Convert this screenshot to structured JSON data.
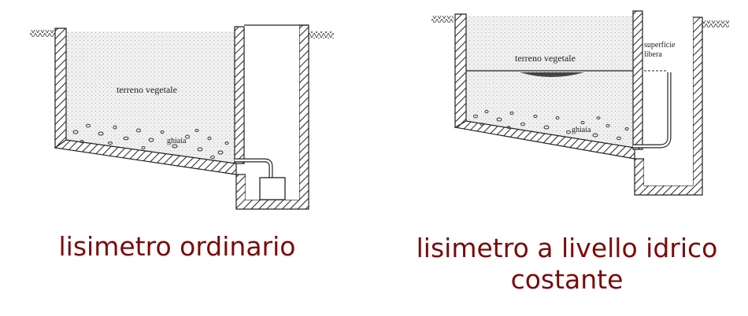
{
  "left_diagram": {
    "soil_label": "terreno vegetale",
    "gravel_label": "ghiaia",
    "caption": "lisimetro ordinario"
  },
  "right_diagram": {
    "soil_label": "terreno vegetale",
    "gravel_label": "ghiaia",
    "surface_label_line1": "superficie",
    "surface_label_line2": "libera",
    "caption_line1": "lisimetro a livello idrico",
    "caption_line2": "costante"
  },
  "colors": {
    "caption": "#7a0a0a",
    "line": "#222222",
    "soil": "#ececec"
  }
}
